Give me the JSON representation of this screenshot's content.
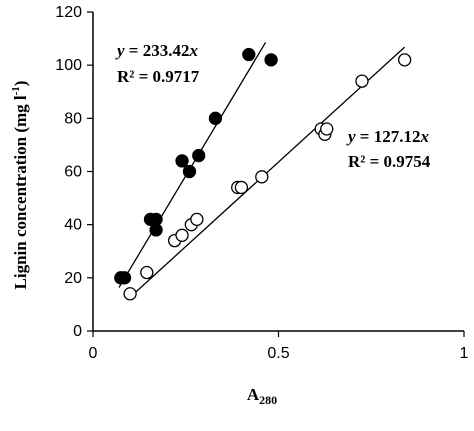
{
  "chart_data": {
    "type": "scatter",
    "xlabel": "A",
    "xlabel_sub": "280",
    "ylabel": "Lignin concentration (mg l",
    "ylabel_sup": "-1",
    "ylabel_close": ")",
    "xlim": [
      0,
      1
    ],
    "ylim": [
      0,
      120
    ],
    "xticks": [
      "0",
      "0.5",
      "1"
    ],
    "xtick_values": [
      0,
      0.5,
      1
    ],
    "yticks": [
      "0",
      "20",
      "40",
      "60",
      "80",
      "100",
      "120"
    ],
    "ytick_values": [
      0,
      20,
      40,
      60,
      80,
      100,
      120
    ],
    "grid": false,
    "series": [
      {
        "marker": "filled-circle",
        "color": "#000000",
        "points": [
          {
            "x": 0.075,
            "y": 20
          },
          {
            "x": 0.085,
            "y": 20
          },
          {
            "x": 0.155,
            "y": 42
          },
          {
            "x": 0.17,
            "y": 42
          },
          {
            "x": 0.17,
            "y": 38
          },
          {
            "x": 0.24,
            "y": 64
          },
          {
            "x": 0.26,
            "y": 60
          },
          {
            "x": 0.285,
            "y": 66
          },
          {
            "x": 0.33,
            "y": 80
          },
          {
            "x": 0.42,
            "y": 104
          },
          {
            "x": 0.48,
            "y": 102
          }
        ],
        "trendline": {
          "slope": 233.42,
          "x_range": [
            0.07,
            0.465
          ]
        },
        "equation_y": "y",
        "equation_eq": " = 233.42",
        "equation_x": "x",
        "r2": "R² = 0.9717"
      },
      {
        "marker": "open-circle",
        "color": "#000000",
        "points": [
          {
            "x": 0.1,
            "y": 14
          },
          {
            "x": 0.145,
            "y": 22
          },
          {
            "x": 0.22,
            "y": 34
          },
          {
            "x": 0.24,
            "y": 36
          },
          {
            "x": 0.265,
            "y": 40
          },
          {
            "x": 0.28,
            "y": 42
          },
          {
            "x": 0.39,
            "y": 54
          },
          {
            "x": 0.4,
            "y": 54
          },
          {
            "x": 0.455,
            "y": 58
          },
          {
            "x": 0.615,
            "y": 76
          },
          {
            "x": 0.625,
            "y": 74
          },
          {
            "x": 0.63,
            "y": 76
          },
          {
            "x": 0.725,
            "y": 94
          },
          {
            "x": 0.84,
            "y": 102
          }
        ],
        "trendline": {
          "slope": 127.12,
          "x_range": [
            0.1,
            0.84
          ]
        },
        "equation_y": "y",
        "equation_eq": " = 127.12",
        "equation_x": "x",
        "r2": "R² = 0.9754"
      }
    ]
  }
}
